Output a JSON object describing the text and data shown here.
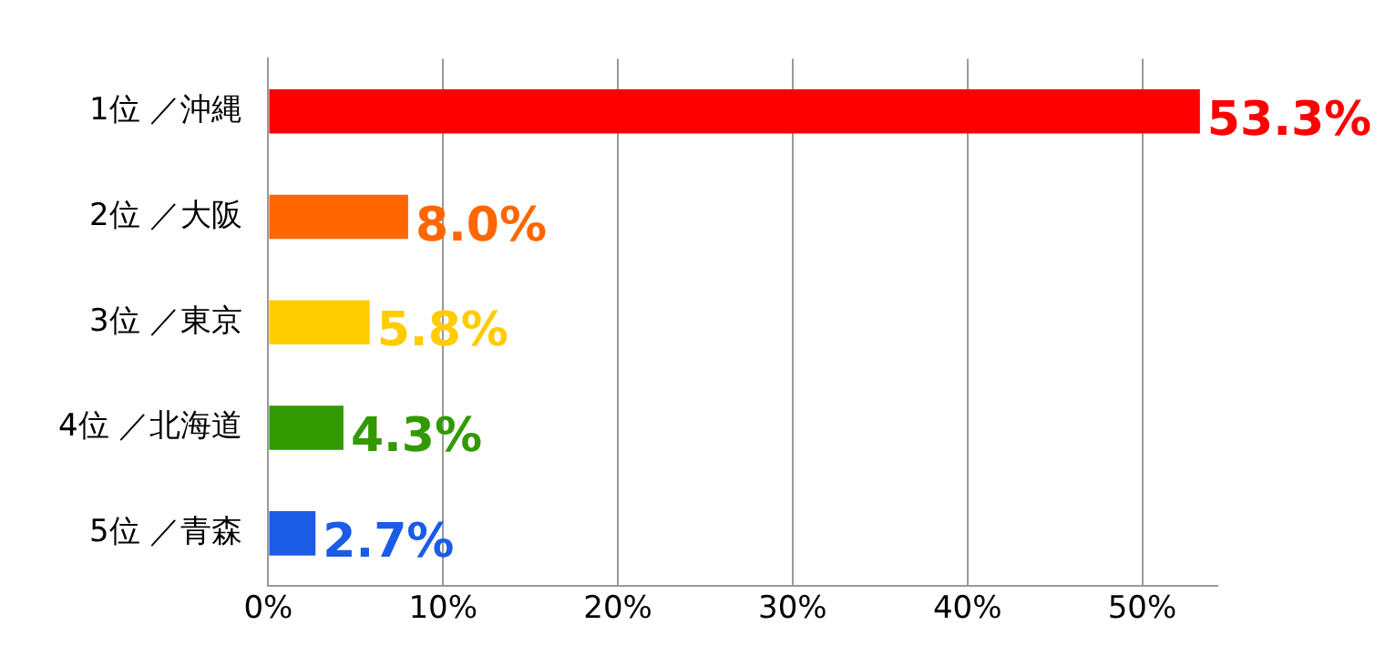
{
  "chart_data": {
    "type": "bar",
    "orientation": "horizontal",
    "categories": [
      "1位 ／沖縄",
      "2位 ／大阪",
      "3位 ／東京",
      "4位 ／北海道",
      "5位 ／青森"
    ],
    "values": [
      53.3,
      8.0,
      5.8,
      4.3,
      2.7
    ],
    "colors": [
      "#ff0000",
      "#ff6600",
      "#ffcc00",
      "#339900",
      "#1a5ce6"
    ],
    "value_labels": [
      "53.3%",
      "8.0%",
      "5.8%",
      "4.3%",
      "2.7%"
    ],
    "xlim": [
      0,
      54.3
    ],
    "xticks": [
      {
        "value": 0,
        "label": "0%"
      },
      {
        "value": 10,
        "label": "10%"
      },
      {
        "value": 20,
        "label": "20%"
      },
      {
        "value": 30,
        "label": "30%"
      },
      {
        "value": 40,
        "label": "40%"
      },
      {
        "value": 50,
        "label": "50%"
      }
    ],
    "grid": "x"
  }
}
